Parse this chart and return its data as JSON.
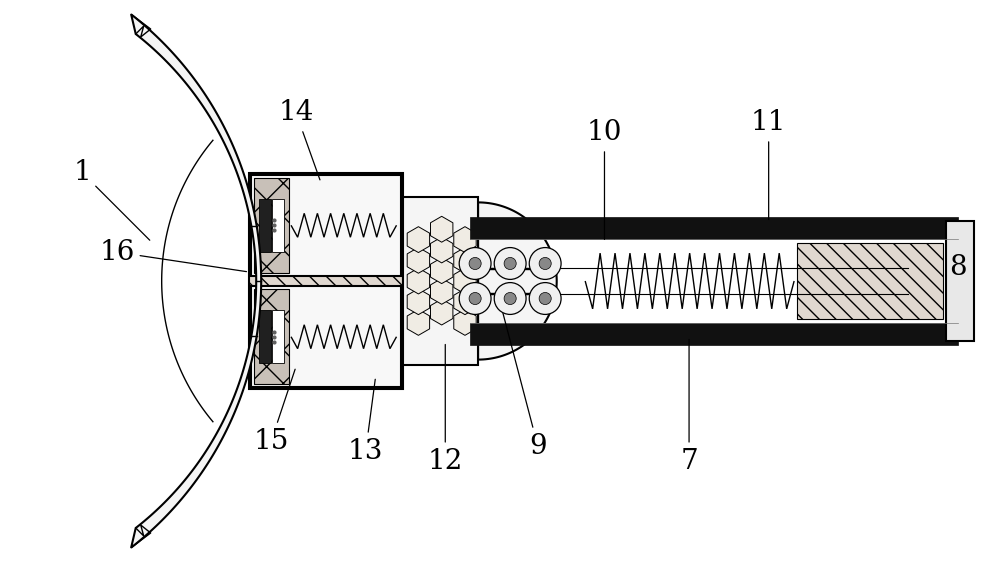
{
  "bg_color": "#ffffff",
  "line_color": "#000000",
  "label_fontsize": 20,
  "fig_width": 10.0,
  "fig_height": 5.62
}
